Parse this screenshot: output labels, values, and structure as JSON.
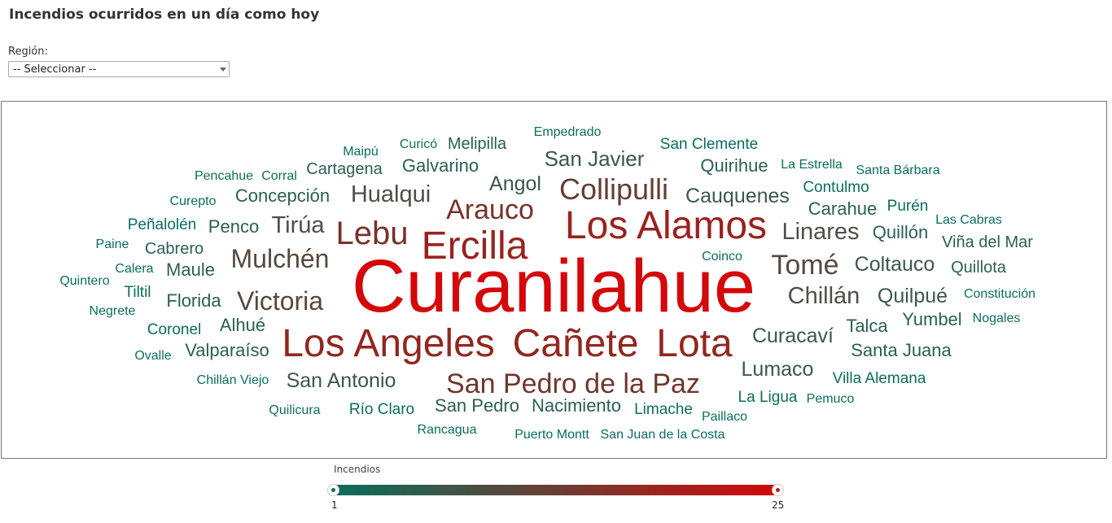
{
  "page": {
    "title": "Incendios ocurridos en un día como hoy"
  },
  "filter": {
    "label": "Región:",
    "selected": "-- Seleccionar --"
  },
  "legend": {
    "title": "Incendios",
    "min": "1",
    "max": "25",
    "color_low": "#0b6e5b",
    "color_high": "#d4070a"
  },
  "chart_data": {
    "type": "wordcloud",
    "value_name": "Incendios",
    "range": [
      1,
      25
    ],
    "words": [
      {
        "text": "Curanilahue",
        "value": 25
      },
      {
        "text": "Los Alamos",
        "value": 12
      },
      {
        "text": "Ercilla",
        "value": 12
      },
      {
        "text": "Los Angeles",
        "value": 11
      },
      {
        "text": "Cañete",
        "value": 11
      },
      {
        "text": "Lota",
        "value": 11
      },
      {
        "text": "Lebu",
        "value": 8
      },
      {
        "text": "Arauco",
        "value": 8
      },
      {
        "text": "San Pedro de la Paz",
        "value": 7
      },
      {
        "text": "Collipulli",
        "value": 6
      },
      {
        "text": "Mulchén",
        "value": 5
      },
      {
        "text": "Victoria",
        "value": 5
      },
      {
        "text": "Tomé",
        "value": 5
      },
      {
        "text": "Hualqui",
        "value": 4
      },
      {
        "text": "Tirúa",
        "value": 4
      },
      {
        "text": "Linares",
        "value": 4
      },
      {
        "text": "Chillán",
        "value": 4
      },
      {
        "text": "San Javier",
        "value": 3
      },
      {
        "text": "Cauquenes",
        "value": 3
      },
      {
        "text": "Angol",
        "value": 3
      },
      {
        "text": "San Antonio",
        "value": 3
      },
      {
        "text": "Coltauco",
        "value": 3
      },
      {
        "text": "Curacaví",
        "value": 3
      },
      {
        "text": "Quilpué",
        "value": 3
      },
      {
        "text": "Lumaco",
        "value": 3
      },
      {
        "text": "Concepción",
        "value": 2
      },
      {
        "text": "Galvarino",
        "value": 2
      },
      {
        "text": "Quirihue",
        "value": 2
      },
      {
        "text": "Carahue",
        "value": 2
      },
      {
        "text": "Quillón",
        "value": 2
      },
      {
        "text": "Penco",
        "value": 2
      },
      {
        "text": "Maule",
        "value": 2
      },
      {
        "text": "Florida",
        "value": 2
      },
      {
        "text": "Talca",
        "value": 2
      },
      {
        "text": "Yumbel",
        "value": 2
      },
      {
        "text": "Santa Juana",
        "value": 2
      },
      {
        "text": "Valparaíso",
        "value": 2
      },
      {
        "text": "San Pedro",
        "value": 2
      },
      {
        "text": "Nacimiento",
        "value": 2
      },
      {
        "text": "Cartagena",
        "value": 2
      },
      {
        "text": "Melipilla",
        "value": 2
      },
      {
        "text": "Viña del Mar",
        "value": 2
      },
      {
        "text": "Quillota",
        "value": 2
      },
      {
        "text": "Alhué",
        "value": 2
      },
      {
        "text": "Cabrero",
        "value": 2
      },
      {
        "text": "Villa Alemana",
        "value": 1
      },
      {
        "text": "Río Claro",
        "value": 1
      },
      {
        "text": "Limache",
        "value": 1
      },
      {
        "text": "La Ligua",
        "value": 1
      },
      {
        "text": "Coronel",
        "value": 1
      },
      {
        "text": "Tiltil",
        "value": 1
      },
      {
        "text": "Peñalolén",
        "value": 1
      },
      {
        "text": "San Clemente",
        "value": 1
      },
      {
        "text": "Contulmo",
        "value": 1
      },
      {
        "text": "Purén",
        "value": 1
      },
      {
        "text": "Empedrado",
        "value": 1
      },
      {
        "text": "Curicó",
        "value": 1
      },
      {
        "text": "Maipú",
        "value": 1
      },
      {
        "text": "Pencahue",
        "value": 1
      },
      {
        "text": "Corral",
        "value": 1
      },
      {
        "text": "Curepto",
        "value": 1
      },
      {
        "text": "Paine",
        "value": 1
      },
      {
        "text": "Calera",
        "value": 1
      },
      {
        "text": "Quintero",
        "value": 1
      },
      {
        "text": "Negrete",
        "value": 1
      },
      {
        "text": "Ovalle",
        "value": 1
      },
      {
        "text": "Chillán Viejo",
        "value": 1
      },
      {
        "text": "Quilicura",
        "value": 1
      },
      {
        "text": "Rancagua",
        "value": 1
      },
      {
        "text": "Puerto Montt",
        "value": 1
      },
      {
        "text": "San Juan de la Costa",
        "value": 1
      },
      {
        "text": "Paillaco",
        "value": 1
      },
      {
        "text": "Pemuco",
        "value": 1
      },
      {
        "text": "Nogales",
        "value": 1
      },
      {
        "text": "Constitución",
        "value": 1
      },
      {
        "text": "La Estrella",
        "value": 1
      },
      {
        "text": "Santa Bárbara",
        "value": 1
      },
      {
        "text": "Las Cabras",
        "value": 1
      },
      {
        "text": "Coinco",
        "value": 1
      }
    ]
  }
}
